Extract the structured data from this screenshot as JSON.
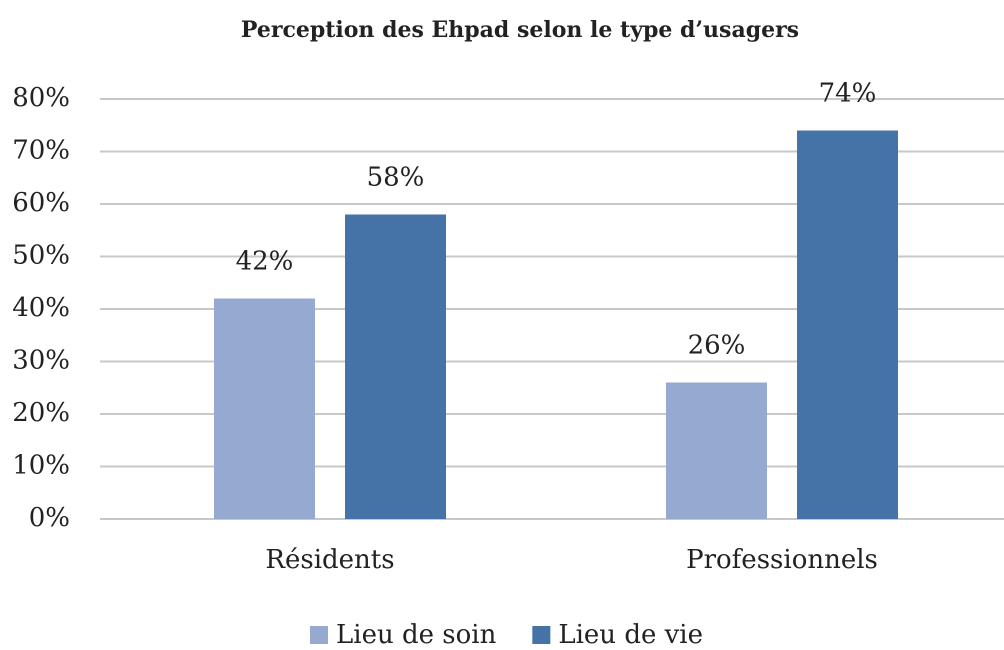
{
  "chart_data": {
    "type": "bar",
    "title": "Perception des Ehpad selon le type d’usagers",
    "categories": [
      "Résidents",
      "Professionnels"
    ],
    "series": [
      {
        "name": "Lieu de soin",
        "color": "#95a9d1",
        "values": [
          42,
          26
        ],
        "value_labels": [
          "42%",
          "26%"
        ]
      },
      {
        "name": "Lieu de vie",
        "color": "#4673a7",
        "values": [
          58,
          74
        ],
        "value_labels": [
          "58%",
          "74%"
        ]
      }
    ],
    "ylim": [
      0,
      80
    ],
    "yticks": [
      {
        "value": 0,
        "label": "0%"
      },
      {
        "value": 10,
        "label": "10%"
      },
      {
        "value": 20,
        "label": "20%"
      },
      {
        "value": 30,
        "label": "30%"
      },
      {
        "value": 40,
        "label": "40%"
      },
      {
        "value": 50,
        "label": "50%"
      },
      {
        "value": 60,
        "label": "60%"
      },
      {
        "value": 70,
        "label": "70%"
      },
      {
        "value": 80,
        "label": "80%"
      }
    ],
    "grid": true,
    "legend": "bottom"
  }
}
